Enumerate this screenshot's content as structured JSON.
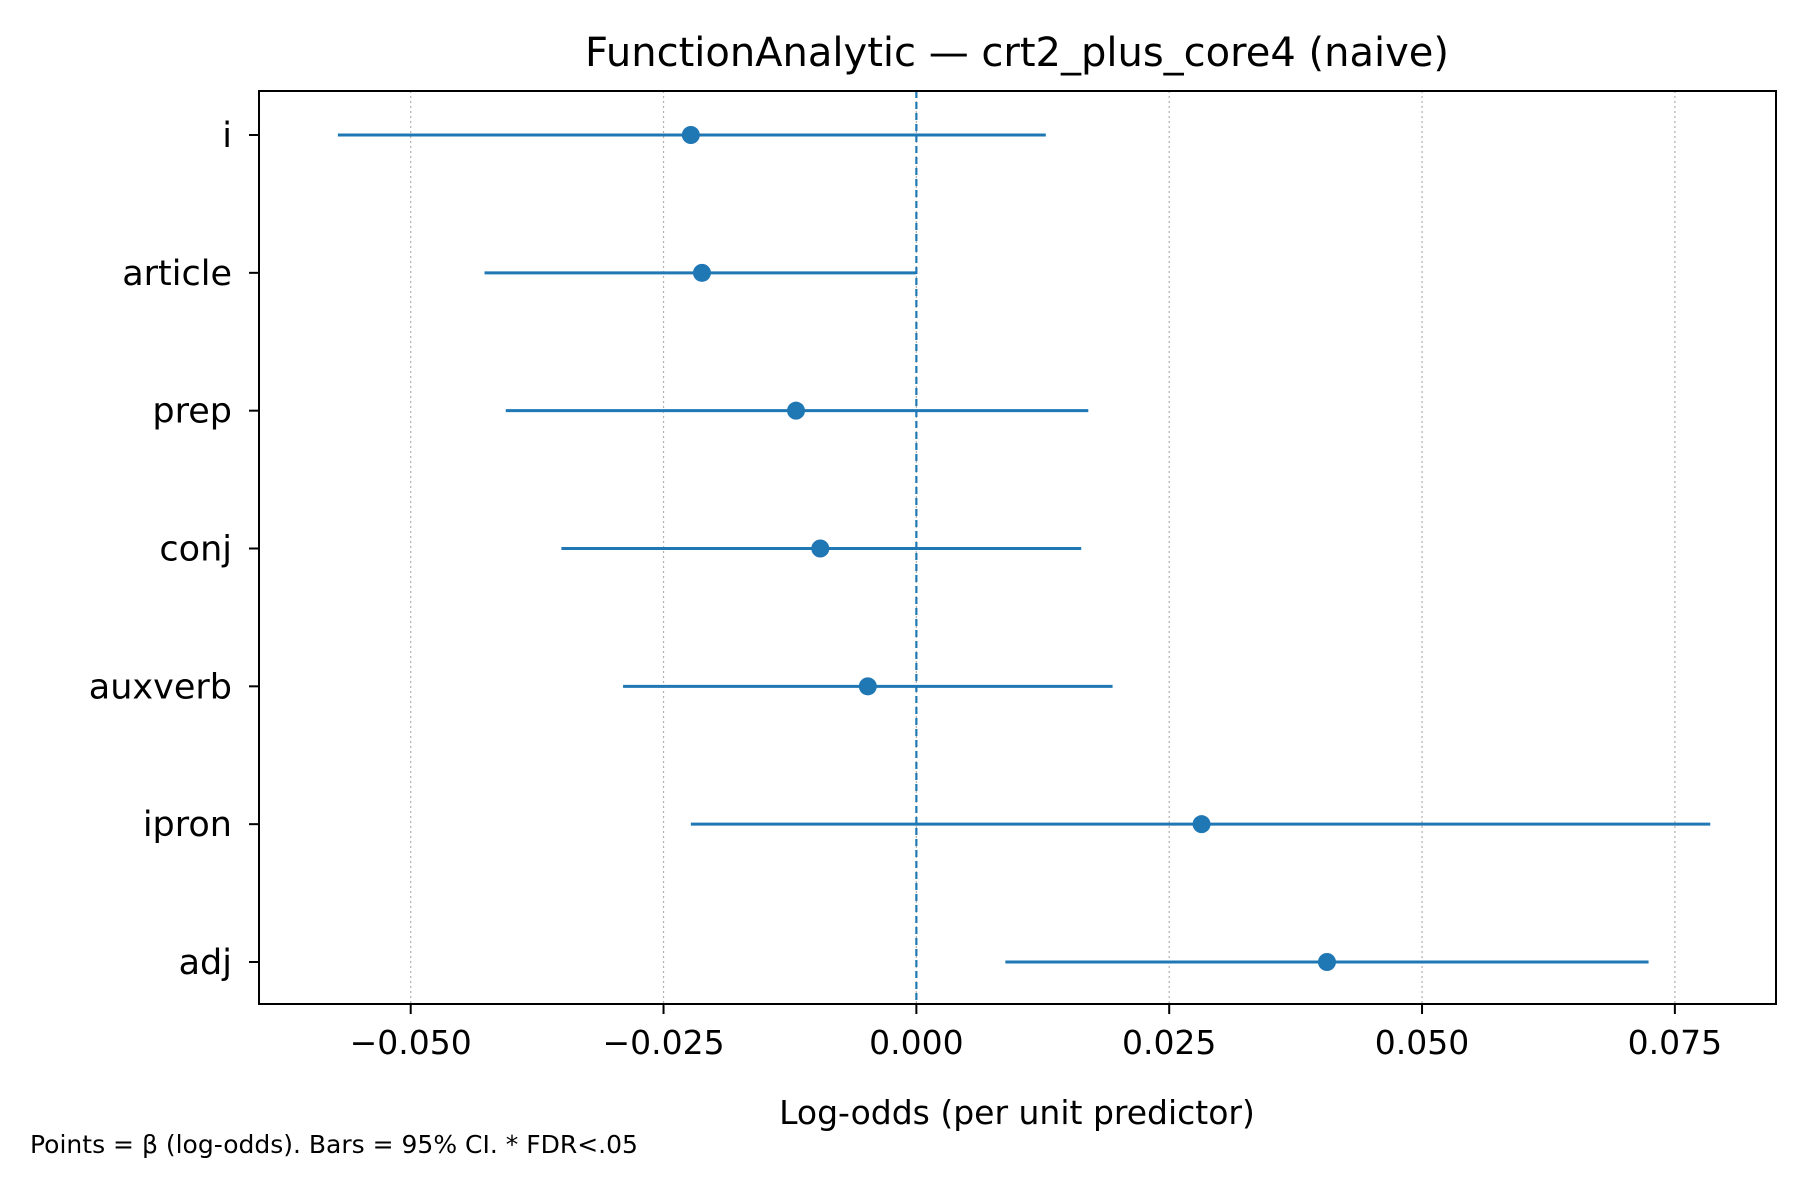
{
  "chart_data": {
    "type": "scatter",
    "title": "FunctionAnalytic — crt2_plus_core4 (naive)",
    "xlabel": "Log-odds (per unit predictor)",
    "ylabel": "",
    "xlim": [
      -0.065,
      0.085
    ],
    "xticks": [
      -0.05,
      -0.025,
      0.0,
      0.025,
      0.05,
      0.075
    ],
    "xtick_labels": [
      "−0.050",
      "−0.025",
      "0.000",
      "0.025",
      "0.050",
      "0.075"
    ],
    "reference_line_x": 0.0,
    "grid": "x-dotted",
    "color": "#1f77b4",
    "series": [
      {
        "categories": [
          "i",
          "article",
          "prep",
          "conj",
          "auxverb",
          "ipron",
          "adj"
        ],
        "estimates": [
          -0.0223,
          -0.0212,
          -0.0119,
          -0.0095,
          -0.0048,
          0.0282,
          0.0406
        ],
        "ci_low": [
          -0.0572,
          -0.0427,
          -0.0406,
          -0.0351,
          -0.029,
          -0.0223,
          0.0088
        ],
        "ci_high": [
          0.0128,
          0.0,
          0.017,
          0.0163,
          0.0194,
          0.0785,
          0.0724
        ]
      }
    ]
  },
  "footnote": "Points = β (log-odds). Bars = 95% CI. * FDR<.05"
}
